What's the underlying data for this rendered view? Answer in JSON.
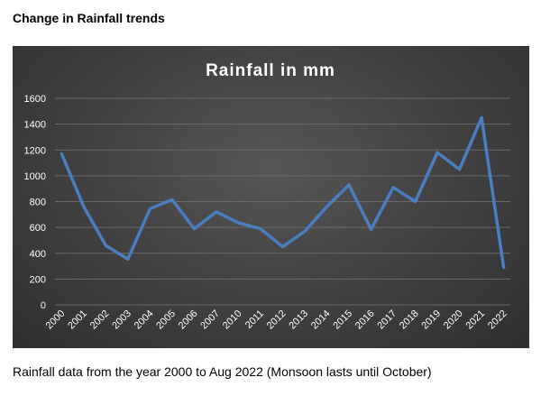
{
  "page": {
    "heading": "Change in Rainfall trends",
    "caption": "Rainfall data from the year 2000 to Aug 2022 (Monsoon lasts until October)"
  },
  "colors": {
    "panel_background": "#404040",
    "line": "#4a7ebf",
    "text": "#ffffff",
    "gridline": "#6a6a6a"
  },
  "chart_data": {
    "type": "line",
    "title": "Rainfall in mm",
    "xlabel": "",
    "ylabel": "",
    "categories": [
      "2000",
      "2001",
      "2002",
      "2003",
      "2004",
      "2005",
      "2006",
      "2007",
      "2010",
      "2011",
      "2012",
      "2013",
      "2014",
      "2015",
      "2016",
      "2017",
      "2018",
      "2019",
      "2020",
      "2021",
      "2022"
    ],
    "series": [
      {
        "values": [
          1170,
          760,
          460,
          355,
          745,
          815,
          590,
          720,
          635,
          590,
          450,
          570,
          760,
          930,
          585,
          910,
          800,
          1180,
          1050,
          1450,
          290
        ]
      }
    ],
    "ylim": [
      0,
      1600
    ],
    "yticks": [
      0,
      200,
      400,
      600,
      800,
      1000,
      1200,
      1400,
      1600
    ],
    "grid": true,
    "legend": "none"
  }
}
